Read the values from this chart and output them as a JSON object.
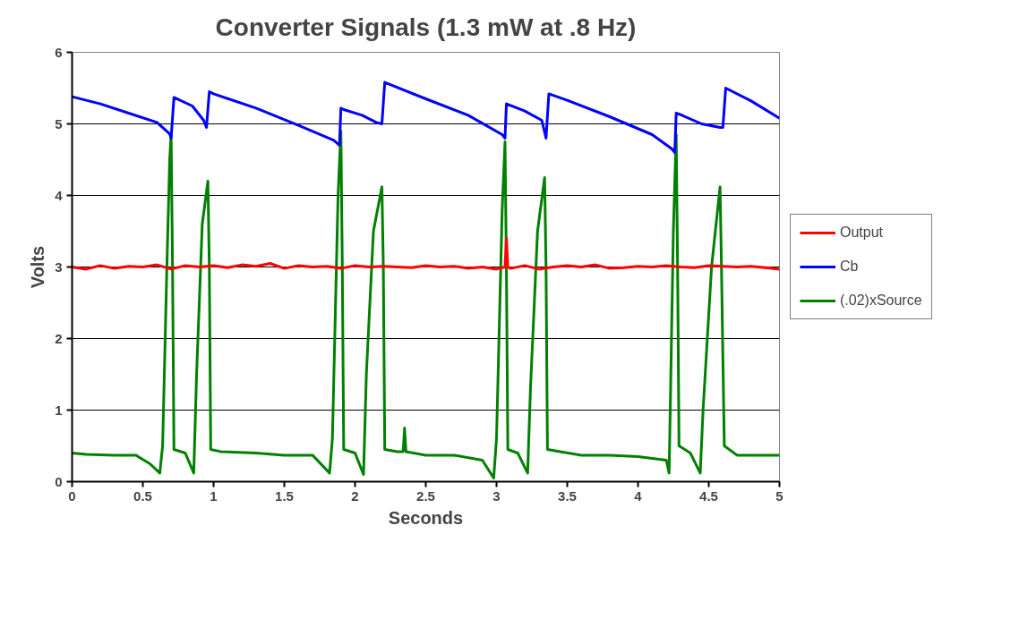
{
  "chart_data": {
    "type": "line",
    "title": "Converter Signals (1.3 mW at .8 Hz)",
    "xlabel": "Seconds",
    "ylabel": "Volts",
    "xlim": [
      0,
      5
    ],
    "xticks": [
      0,
      0.5,
      1,
      1.5,
      2,
      2.5,
      3,
      3.5,
      4,
      4.5,
      5
    ],
    "ylim": [
      0,
      6
    ],
    "yticks": [
      0,
      1,
      2,
      3,
      4,
      5,
      6
    ],
    "grid": "y",
    "legend": "right",
    "line_style": "solid",
    "marker": "none",
    "series": [
      {
        "name": "Output",
        "color": "#ff0000",
        "x": [
          0,
          0.1,
          0.2,
          0.3,
          0.4,
          0.5,
          0.6,
          0.7,
          0.8,
          0.9,
          1.0,
          1.1,
          1.2,
          1.3,
          1.4,
          1.5,
          1.6,
          1.7,
          1.8,
          1.9,
          2.0,
          2.1,
          2.2,
          2.3,
          2.4,
          2.5,
          2.6,
          2.7,
          2.8,
          2.9,
          3.0,
          3.06,
          3.07,
          3.08,
          3.1,
          3.2,
          3.3,
          3.4,
          3.5,
          3.6,
          3.7,
          3.8,
          3.9,
          4.0,
          4.1,
          4.2,
          4.3,
          4.4,
          4.5,
          4.6,
          4.7,
          4.8,
          4.9,
          5.0
        ],
        "values": [
          3.0,
          2.97,
          3.02,
          2.98,
          3.01,
          3.0,
          3.03,
          2.97,
          3.02,
          3.0,
          3.02,
          2.99,
          3.03,
          3.01,
          3.05,
          2.98,
          3.02,
          3.0,
          3.01,
          2.98,
          3.02,
          3.0,
          3.01,
          3.0,
          2.99,
          3.02,
          3.0,
          3.01,
          2.98,
          3.0,
          2.97,
          3.0,
          3.4,
          3.0,
          2.98,
          3.02,
          2.97,
          3.0,
          3.02,
          3.0,
          3.03,
          2.98,
          2.99,
          3.01,
          3.0,
          3.02,
          3.0,
          2.99,
          3.02,
          3.01,
          3.0,
          3.01,
          2.99,
          2.97
        ]
      },
      {
        "name": "Cb",
        "color": "#0000ff",
        "x": [
          0,
          0.2,
          0.4,
          0.6,
          0.69,
          0.7,
          0.72,
          0.85,
          0.93,
          0.95,
          0.97,
          1.0,
          1.3,
          1.6,
          1.85,
          1.89,
          1.9,
          1.92,
          2.05,
          2.15,
          2.19,
          2.21,
          2.5,
          2.8,
          3.04,
          3.06,
          3.07,
          3.2,
          3.32,
          3.35,
          3.37,
          3.5,
          3.8,
          4.1,
          4.24,
          4.26,
          4.27,
          4.3,
          4.45,
          4.58,
          4.6,
          4.62,
          4.8,
          5.0
        ],
        "values": [
          5.38,
          5.28,
          5.15,
          5.02,
          4.86,
          4.8,
          5.37,
          5.25,
          5.05,
          4.95,
          5.45,
          5.42,
          5.22,
          4.98,
          4.77,
          4.7,
          5.22,
          5.2,
          5.12,
          5.02,
          5.0,
          5.58,
          5.35,
          5.12,
          4.85,
          4.8,
          5.28,
          5.18,
          5.05,
          4.8,
          5.42,
          5.33,
          5.1,
          4.85,
          4.65,
          4.6,
          5.15,
          5.13,
          5.0,
          4.95,
          4.95,
          5.5,
          5.32,
          5.08
        ]
      },
      {
        "name": "(.02)xSource",
        "color": "#008000",
        "x": [
          0,
          0.1,
          0.3,
          0.45,
          0.55,
          0.62,
          0.64,
          0.67,
          0.69,
          0.7,
          0.71,
          0.72,
          0.8,
          0.86,
          0.88,
          0.92,
          0.96,
          0.97,
          0.98,
          1.05,
          1.3,
          1.5,
          1.7,
          1.82,
          1.84,
          1.88,
          1.9,
          1.91,
          1.92,
          2.0,
          2.06,
          2.08,
          2.13,
          2.19,
          2.2,
          2.21,
          2.3,
          2.34,
          2.35,
          2.36,
          2.5,
          2.7,
          2.9,
          2.98,
          3.0,
          3.04,
          3.06,
          3.07,
          3.08,
          3.15,
          3.22,
          3.24,
          3.29,
          3.34,
          3.35,
          3.36,
          3.45,
          3.6,
          3.8,
          4.0,
          4.2,
          4.22,
          4.25,
          4.27,
          4.28,
          4.29,
          4.37,
          4.44,
          4.46,
          4.52,
          4.58,
          4.59,
          4.61,
          4.7,
          4.8,
          5.0
        ],
        "values": [
          0.4,
          0.38,
          0.37,
          0.37,
          0.25,
          0.12,
          0.5,
          3.0,
          4.5,
          4.85,
          3.0,
          0.45,
          0.4,
          0.12,
          1.5,
          3.6,
          4.2,
          3.0,
          0.45,
          0.42,
          0.4,
          0.37,
          0.37,
          0.12,
          0.6,
          4.0,
          4.9,
          3.0,
          0.45,
          0.4,
          0.1,
          1.5,
          3.5,
          4.12,
          3.0,
          0.45,
          0.42,
          0.42,
          0.75,
          0.42,
          0.37,
          0.37,
          0.3,
          0.05,
          0.6,
          3.8,
          4.75,
          3.0,
          0.45,
          0.4,
          0.12,
          1.3,
          3.5,
          4.25,
          3.0,
          0.45,
          0.42,
          0.37,
          0.37,
          0.35,
          0.3,
          0.12,
          3.5,
          4.85,
          3.0,
          0.5,
          0.4,
          0.12,
          1.0,
          3.0,
          4.12,
          3.0,
          0.5,
          0.37,
          0.37,
          0.37
        ]
      }
    ]
  }
}
